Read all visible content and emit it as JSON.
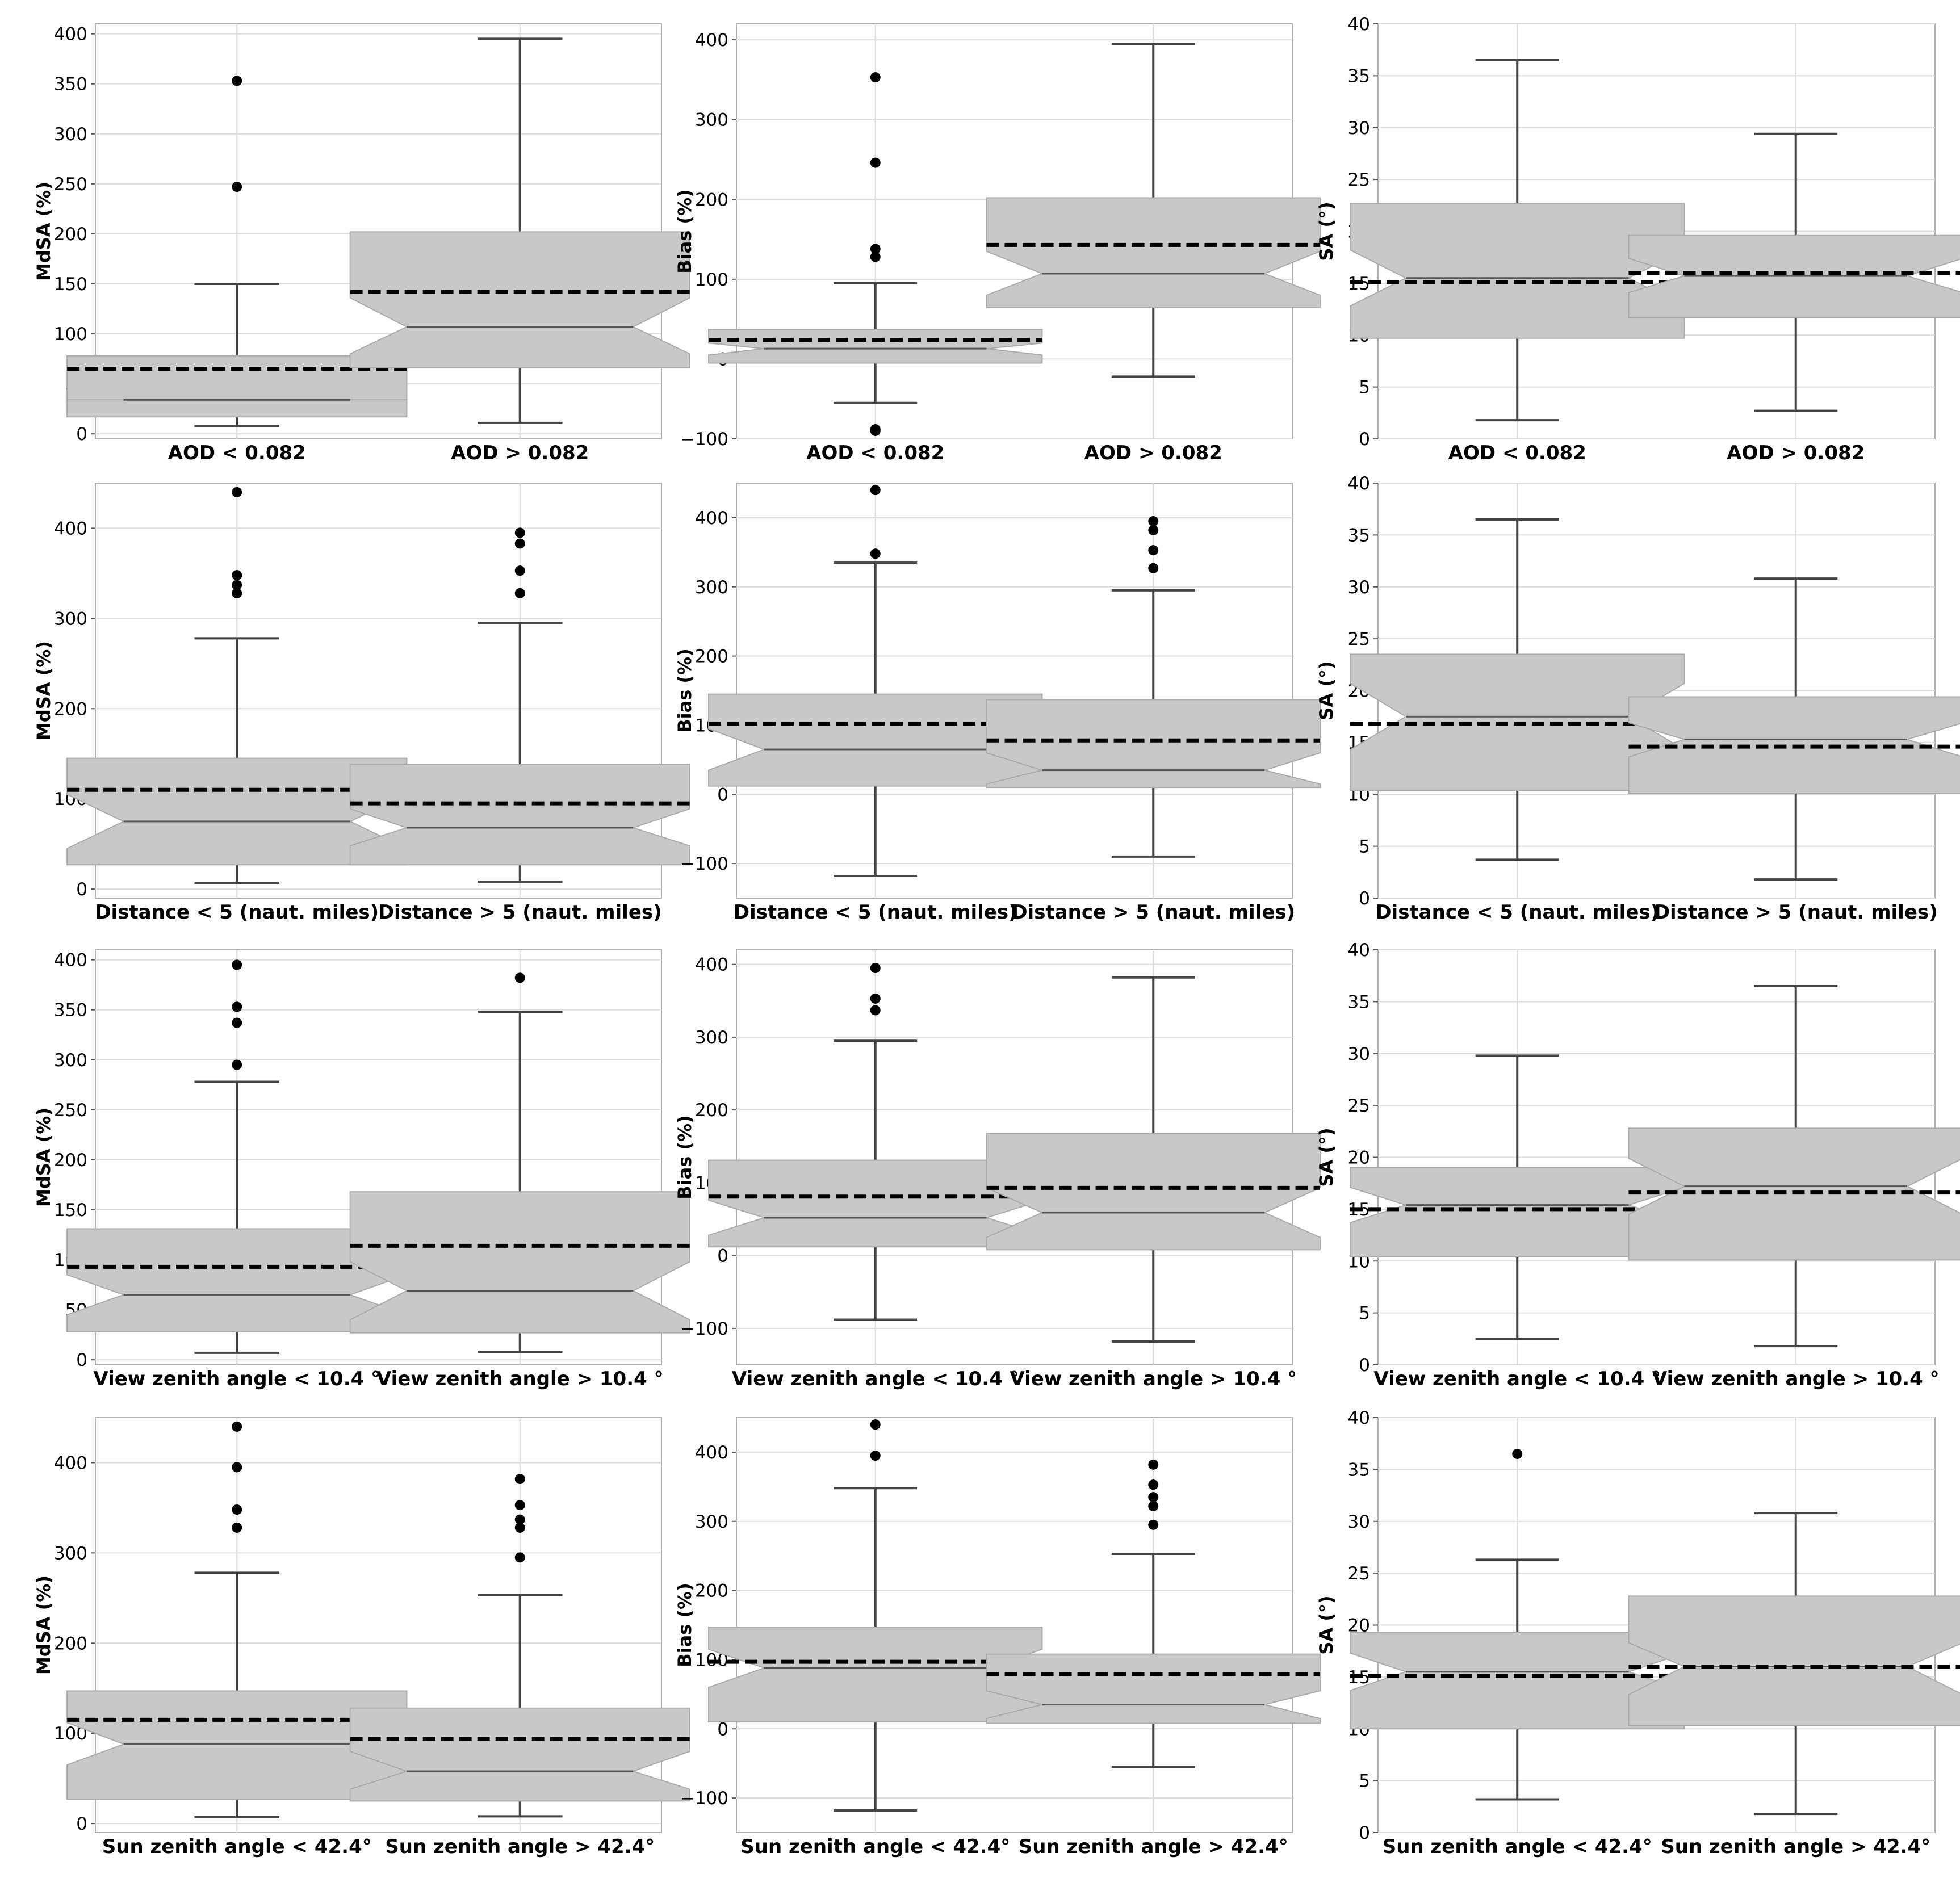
{
  "chart_data": [
    {
      "type": "box",
      "ylabel": "MdSA (%)",
      "ylim": [
        -5,
        410
      ],
      "yticks": [
        0,
        50,
        100,
        150,
        200,
        250,
        300,
        350,
        400
      ],
      "categories": [
        "AOD < 0.082",
        "AOD > 0.082"
      ],
      "boxes": [
        {
          "whislo": 8,
          "q1": 17,
          "notch_lo": 34,
          "med": 34,
          "notch_hi": 34,
          "q3": 78,
          "whishi": 150,
          "mean": 65,
          "fliers": [
            247,
            353
          ]
        },
        {
          "whislo": 11,
          "q1": 66,
          "notch_lo": 80,
          "med": 107,
          "notch_hi": 136,
          "q3": 202,
          "whishi": 395,
          "mean": 142,
          "fliers": []
        }
      ]
    },
    {
      "type": "box",
      "ylabel": "Bias (%)",
      "ylim": [
        -100,
        420
      ],
      "yticks": [
        -100,
        0,
        100,
        200,
        300,
        400
      ],
      "categories": [
        "AOD < 0.082",
        "AOD > 0.082"
      ],
      "boxes": [
        {
          "whislo": -55,
          "q1": -5,
          "notch_lo": 5,
          "med": 13,
          "notch_hi": 20,
          "q3": 37,
          "whishi": 95,
          "mean": 24,
          "fliers": [
            -88,
            -90,
            128,
            138,
            246,
            353
          ]
        },
        {
          "whislo": -22,
          "q1": 65,
          "notch_lo": 80,
          "med": 107,
          "notch_hi": 135,
          "q3": 202,
          "whishi": 395,
          "mean": 143,
          "fliers": []
        }
      ]
    },
    {
      "type": "box",
      "ylabel": "SA (°)",
      "ylim": [
        0,
        40
      ],
      "yticks": [
        0,
        5,
        10,
        15,
        20,
        25,
        30,
        35,
        40
      ],
      "categories": [
        "AOD < 0.082",
        "AOD > 0.082"
      ],
      "boxes": [
        {
          "whislo": 1.8,
          "q1": 9.7,
          "notch_lo": 12.8,
          "med": 15.5,
          "notch_hi": 18.2,
          "q3": 22.7,
          "whishi": 36.5,
          "mean": 15.1,
          "fliers": []
        },
        {
          "whislo": 2.7,
          "q1": 11.7,
          "notch_lo": 14.1,
          "med": 15.7,
          "notch_hi": 17.4,
          "q3": 19.6,
          "whishi": 29.4,
          "mean": 16.0,
          "fliers": []
        }
      ]
    },
    {
      "type": "box",
      "ylabel": "MdSA (%)",
      "ylim": [
        -10,
        450
      ],
      "yticks": [
        0,
        100,
        200,
        300,
        400
      ],
      "categories": [
        "Distance < 5 (naut. miles)",
        "Distance > 5 (naut. miles)"
      ],
      "boxes": [
        {
          "whislo": 7,
          "q1": 27,
          "notch_lo": 45,
          "med": 75,
          "notch_hi": 105,
          "q3": 145,
          "whishi": 278,
          "mean": 110,
          "fliers": [
            328,
            337,
            348,
            440
          ]
        },
        {
          "whislo": 8,
          "q1": 27,
          "notch_lo": 48,
          "med": 68,
          "notch_hi": 89,
          "q3": 138,
          "whishi": 295,
          "mean": 95,
          "fliers": [
            328,
            353,
            383,
            395
          ]
        }
      ]
    },
    {
      "type": "box",
      "ylabel": "Bias (%)",
      "ylim": [
        -150,
        450
      ],
      "yticks": [
        -100,
        0,
        100,
        200,
        300,
        400
      ],
      "categories": [
        "Distance < 5 (naut. miles)",
        "Distance > 5 (naut. miles)"
      ],
      "boxes": [
        {
          "whislo": -118,
          "q1": 12,
          "notch_lo": 35,
          "med": 65,
          "notch_hi": 95,
          "q3": 145,
          "whishi": 335,
          "mean": 102,
          "fliers": [
            348,
            440
          ]
        },
        {
          "whislo": -90,
          "q1": 10,
          "notch_lo": 15,
          "med": 35,
          "notch_hi": 60,
          "q3": 137,
          "whishi": 295,
          "mean": 78,
          "fliers": [
            327,
            353,
            382,
            395
          ]
        }
      ]
    },
    {
      "type": "box",
      "ylabel": "SA (°)",
      "ylim": [
        0,
        40
      ],
      "yticks": [
        0,
        5,
        10,
        15,
        20,
        25,
        30,
        35,
        40
      ],
      "categories": [
        "Distance < 5 (naut. miles)",
        "Distance > 5 (naut. miles)"
      ],
      "boxes": [
        {
          "whislo": 3.7,
          "q1": 10.4,
          "notch_lo": 14.3,
          "med": 17.5,
          "notch_hi": 20.7,
          "q3": 23.5,
          "whishi": 36.5,
          "mean": 16.8,
          "fliers": []
        },
        {
          "whislo": 1.8,
          "q1": 10.1,
          "notch_lo": 13.6,
          "med": 15.3,
          "notch_hi": 16.9,
          "q3": 19.4,
          "whishi": 30.8,
          "mean": 14.6,
          "fliers": []
        }
      ]
    },
    {
      "type": "box",
      "ylabel": "MdSA (%)",
      "ylim": [
        -5,
        410
      ],
      "yticks": [
        0,
        50,
        100,
        150,
        200,
        250,
        300,
        350,
        400
      ],
      "categories": [
        "View zenith angle < 10.4 °",
        "View zenith angle > 10.4 °"
      ],
      "boxes": [
        {
          "whislo": 7,
          "q1": 28,
          "notch_lo": 45,
          "med": 65,
          "notch_hi": 85,
          "q3": 131,
          "whishi": 278,
          "mean": 93,
          "fliers": [
            295,
            337,
            353,
            395
          ]
        },
        {
          "whislo": 8,
          "q1": 27,
          "notch_lo": 40,
          "med": 69,
          "notch_hi": 98,
          "q3": 168,
          "whishi": 348,
          "mean": 114,
          "fliers": [
            382
          ]
        }
      ]
    },
    {
      "type": "box",
      "ylabel": "Bias (%)",
      "ylim": [
        -150,
        420
      ],
      "yticks": [
        -100,
        0,
        100,
        200,
        300,
        400
      ],
      "categories": [
        "View zenith angle < 10.4 °",
        "View zenith angle > 10.4 °"
      ],
      "boxes": [
        {
          "whislo": -88,
          "q1": 12,
          "notch_lo": 28,
          "med": 52,
          "notch_hi": 76,
          "q3": 131,
          "whishi": 295,
          "mean": 81,
          "fliers": [
            337,
            353,
            395
          ]
        },
        {
          "whislo": -118,
          "q1": 8,
          "notch_lo": 25,
          "med": 59,
          "notch_hi": 93,
          "q3": 168,
          "whishi": 382,
          "mean": 93,
          "fliers": []
        }
      ]
    },
    {
      "type": "box",
      "ylabel": "SA (°)",
      "ylim": [
        0,
        40
      ],
      "yticks": [
        0,
        5,
        10,
        15,
        20,
        25,
        30,
        35,
        40
      ],
      "categories": [
        "View zenith angle < 10.4 °",
        "View zenith angle > 10.4 °"
      ],
      "boxes": [
        {
          "whislo": 2.5,
          "q1": 10.4,
          "notch_lo": 13.7,
          "med": 15.4,
          "notch_hi": 17.1,
          "q3": 19.0,
          "whishi": 29.8,
          "mean": 15.0,
          "fliers": []
        },
        {
          "whislo": 1.8,
          "q1": 10.1,
          "notch_lo": 14.5,
          "med": 17.2,
          "notch_hi": 19.9,
          "q3": 22.8,
          "whishi": 36.5,
          "mean": 16.6,
          "fliers": []
        }
      ]
    },
    {
      "type": "box",
      "ylabel": "MdSA (%)",
      "ylim": [
        -10,
        450
      ],
      "yticks": [
        0,
        100,
        200,
        300,
        400
      ],
      "categories": [
        "Sun zenith angle < 42.4°",
        "Sun zenith angle > 42.4°"
      ],
      "boxes": [
        {
          "whislo": 7,
          "q1": 27,
          "notch_lo": 65,
          "med": 88,
          "notch_hi": 112,
          "q3": 147,
          "whishi": 278,
          "mean": 115,
          "fliers": [
            328,
            348,
            395,
            440
          ]
        },
        {
          "whislo": 8,
          "q1": 25,
          "notch_lo": 38,
          "med": 58,
          "notch_hi": 80,
          "q3": 128,
          "whishi": 253,
          "mean": 94,
          "fliers": [
            295,
            328,
            337,
            353,
            382
          ]
        }
      ]
    },
    {
      "type": "box",
      "ylabel": "Bias (%)",
      "ylim": [
        -150,
        450
      ],
      "yticks": [
        -100,
        0,
        100,
        200,
        300,
        400
      ],
      "categories": [
        "Sun zenith angle < 42.4°",
        "Sun zenith angle > 42.4°"
      ],
      "boxes": [
        {
          "whislo": -118,
          "q1": 10,
          "notch_lo": 60,
          "med": 88,
          "notch_hi": 115,
          "q3": 147,
          "whishi": 348,
          "mean": 97,
          "fliers": [
            395,
            440
          ]
        },
        {
          "whislo": -55,
          "q1": 8,
          "notch_lo": 15,
          "med": 35,
          "notch_hi": 55,
          "q3": 108,
          "whishi": 253,
          "mean": 79,
          "fliers": [
            295,
            322,
            335,
            353,
            382
          ]
        }
      ]
    },
    {
      "type": "box",
      "ylabel": "SA (°)",
      "ylim": [
        0,
        40
      ],
      "yticks": [
        0,
        5,
        10,
        15,
        20,
        25,
        30,
        35,
        40
      ],
      "categories": [
        "Sun zenith angle < 42.4°",
        "Sun zenith angle > 42.4°"
      ],
      "boxes": [
        {
          "whislo": 3.2,
          "q1": 10.0,
          "notch_lo": 13.7,
          "med": 15.5,
          "notch_hi": 17.3,
          "q3": 19.3,
          "whishi": 26.3,
          "mean": 15.1,
          "fliers": [
            36.5
          ]
        },
        {
          "whislo": 1.8,
          "q1": 10.3,
          "notch_lo": 13.3,
          "med": 16.0,
          "notch_hi": 18.3,
          "q3": 22.8,
          "whishi": 30.8,
          "mean": 16.0,
          "fliers": []
        }
      ]
    }
  ]
}
